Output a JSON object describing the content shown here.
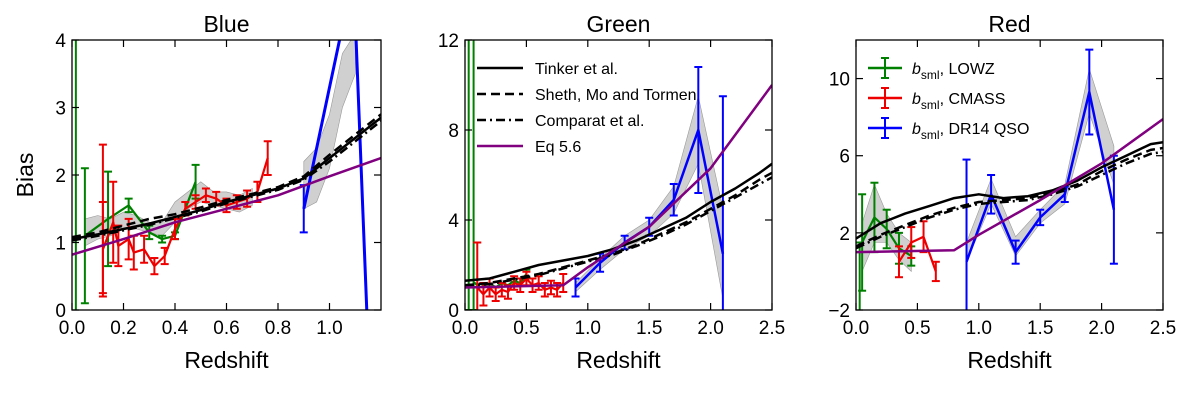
{
  "figure": {
    "ylabel_shared": "Bias"
  },
  "chart_data": [
    {
      "type": "line",
      "title": "Blue",
      "xlabel": "Redshift",
      "ylabel": "Bias",
      "xlim": [
        0.0,
        1.2
      ],
      "ylim": [
        0,
        4
      ],
      "xticks": [
        0.0,
        0.2,
        0.4,
        0.6,
        0.8,
        1.0
      ],
      "yticks": [
        0,
        1,
        2,
        3,
        4
      ],
      "xtick_labels": [
        "0.0",
        "0.2",
        "0.4",
        "0.6",
        "0.8",
        "1.0"
      ],
      "ytick_labels": [
        "0",
        "1",
        "2",
        "3",
        "4"
      ],
      "bands": [
        {
          "color": "#c8c8c8",
          "x": [
            0.05,
            0.1,
            0.15,
            0.2,
            0.25,
            0.3,
            0.35,
            0.4,
            0.45,
            0.5,
            0.55,
            0.6,
            0.65,
            0.7
          ],
          "lower": [
            0.95,
            1.05,
            1.1,
            1.2,
            1.2,
            1.15,
            1.1,
            1.3,
            1.5,
            1.6,
            1.55,
            1.5,
            1.45,
            1.55
          ],
          "upper": [
            1.35,
            1.4,
            1.35,
            1.45,
            1.4,
            1.3,
            1.3,
            1.6,
            1.75,
            1.9,
            1.75,
            1.75,
            1.7,
            1.8
          ]
        },
        {
          "color": "#c8c8c8",
          "x": [
            0.9,
            0.95,
            1.0,
            1.05,
            1.1
          ],
          "lower": [
            1.5,
            1.6,
            2.1,
            3.0,
            3.5
          ],
          "upper": [
            2.2,
            2.4,
            2.9,
            3.8,
            4.1
          ]
        }
      ],
      "series": [
        {
          "color": "#008000",
          "style": "solid",
          "width": 2.2,
          "x": [
            0.05,
            0.14,
            0.22,
            0.3,
            0.35,
            0.4,
            0.48
          ],
          "y": [
            1.1,
            1.35,
            1.55,
            1.15,
            1.05,
            1.1,
            1.9
          ],
          "errors": [
            1.0,
            0.7,
            0.1,
            0.1,
            0.05,
            0.05,
            0.25
          ],
          "extra_errorbars": [
            {
              "x": 0.015,
              "y": 2.0,
              "err": 3.0
            }
          ]
        },
        {
          "color": "#ee0000",
          "style": "solid",
          "width": 2.2,
          "x": [
            0.12,
            0.16,
            0.18,
            0.22,
            0.24,
            0.28,
            0.32,
            0.36,
            0.4,
            0.44,
            0.48,
            0.52,
            0.56,
            0.6,
            0.64,
            0.68,
            0.72,
            0.76
          ],
          "y": [
            0.9,
            1.3,
            0.95,
            1.05,
            0.85,
            0.9,
            0.65,
            0.8,
            1.2,
            1.5,
            1.6,
            1.7,
            1.65,
            1.55,
            1.6,
            1.65,
            1.75,
            2.25
          ],
          "errors": [
            0.7,
            0.6,
            0.3,
            0.3,
            0.25,
            0.2,
            0.12,
            0.12,
            0.15,
            0.1,
            0.1,
            0.1,
            0.1,
            0.1,
            0.1,
            0.12,
            0.15,
            0.25
          ],
          "extra_errorbars": [
            {
              "x": 0.12,
              "y": 1.35,
              "err": 1.1
            }
          ]
        },
        {
          "color": "#0000ff",
          "style": "solid",
          "width": 3,
          "x": [
            0.9,
            1.05,
            1.1,
            1.15
          ],
          "y": [
            1.5,
            4.2,
            4.3,
            -0.5
          ],
          "errors": [
            0.35,
            0.0,
            0.0,
            0.0
          ]
        },
        {
          "color": "#000000",
          "style": "solid",
          "width": 2.5,
          "x": [
            0.0,
            0.1,
            0.2,
            0.3,
            0.4,
            0.5,
            0.6,
            0.7,
            0.8,
            0.9,
            1.0,
            1.1,
            1.2
          ],
          "y": [
            1.05,
            1.12,
            1.2,
            1.28,
            1.38,
            1.48,
            1.6,
            1.7,
            1.8,
            1.95,
            2.25,
            2.55,
            2.85
          ],
          "errors": []
        },
        {
          "color": "#000000",
          "style": "dashed",
          "width": 2.5,
          "x": [
            0.0,
            0.1,
            0.2,
            0.3,
            0.4,
            0.5,
            0.6,
            0.7,
            0.8,
            0.9,
            1.0,
            1.1,
            1.2
          ],
          "y": [
            1.08,
            1.15,
            1.25,
            1.35,
            1.42,
            1.52,
            1.63,
            1.72,
            1.82,
            1.98,
            2.3,
            2.6,
            2.9
          ],
          "errors": []
        },
        {
          "color": "#000000",
          "style": "dashdot",
          "width": 2.5,
          "x": [
            0.0,
            0.1,
            0.2,
            0.3,
            0.4,
            0.5,
            0.6,
            0.7,
            0.8,
            0.9,
            1.0,
            1.1,
            1.2
          ],
          "y": [
            1.03,
            1.1,
            1.18,
            1.26,
            1.36,
            1.46,
            1.58,
            1.68,
            1.78,
            1.93,
            2.2,
            2.5,
            2.8
          ],
          "errors": []
        },
        {
          "color": "#800080",
          "style": "solid",
          "width": 2.5,
          "x": [
            0.0,
            0.2,
            0.4,
            0.6,
            0.8,
            1.0,
            1.2
          ],
          "y": [
            0.82,
            1.05,
            1.3,
            1.5,
            1.7,
            1.98,
            2.25
          ],
          "errors": []
        }
      ],
      "legend": null
    },
    {
      "type": "line",
      "title": "Green",
      "xlabel": "Redshift",
      "ylabel": "",
      "xlim": [
        0.0,
        2.5
      ],
      "ylim": [
        0,
        12
      ],
      "xticks": [
        0.0,
        0.5,
        1.0,
        1.5,
        2.0,
        2.5
      ],
      "yticks": [
        0,
        4,
        8,
        12
      ],
      "xtick_labels": [
        "0.0",
        "0.5",
        "1.0",
        "1.5",
        "2.0",
        "2.5"
      ],
      "ytick_labels": [
        "0",
        "4",
        "8",
        "12"
      ],
      "bands": [
        {
          "color": "#c8c8c8",
          "x": [
            0.9,
            1.1,
            1.3,
            1.5,
            1.7,
            1.9,
            2.1
          ],
          "lower": [
            0.8,
            1.8,
            2.7,
            3.3,
            4.3,
            6.5,
            0.5
          ],
          "upper": [
            1.2,
            2.3,
            3.3,
            4.0,
            5.5,
            9.5,
            4.5
          ]
        }
      ],
      "series": [
        {
          "color": "#008000",
          "style": "solid",
          "width": 2.2,
          "x": [
            0.04,
            0.08,
            0.12,
            0.16,
            0.2,
            0.25,
            0.3,
            0.35,
            0.4,
            0.45,
            0.5
          ],
          "y": [
            1.0,
            1.2,
            1.0,
            1.1,
            1.2,
            1.0,
            1.2,
            1.1,
            1.3,
            1.2,
            1.6
          ],
          "errors": [
            0,
            0,
            0,
            0,
            0,
            0,
            0,
            0,
            0,
            0,
            0.2
          ],
          "extra_errorbars": [
            {
              "x": 0.03,
              "y": 8.0,
              "err": 8.0
            },
            {
              "x": 0.07,
              "y": 8.0,
              "err": 8.0
            }
          ]
        },
        {
          "color": "#ee0000",
          "style": "solid",
          "width": 2.2,
          "x": [
            0.1,
            0.15,
            0.2,
            0.25,
            0.3,
            0.35,
            0.4,
            0.45,
            0.5,
            0.55,
            0.6,
            0.65,
            0.7,
            0.75,
            0.8
          ],
          "y": [
            1.0,
            0.7,
            1.0,
            0.7,
            0.9,
            0.8,
            1.2,
            1.1,
            1.4,
            1.1,
            1.2,
            0.9,
            1.0,
            0.9,
            1.2
          ],
          "errors": [
            2.0,
            0.5,
            0.4,
            0.3,
            0.3,
            0.3,
            0.3,
            0.3,
            0.3,
            0.3,
            0.3,
            0.3,
            0.3,
            0.3,
            0.4
          ],
          "extra_errorbars": []
        },
        {
          "color": "#0000ff",
          "style": "solid",
          "width": 2.5,
          "x": [
            0.9,
            1.1,
            1.3,
            1.5,
            1.7,
            1.9,
            2.1
          ],
          "y": [
            1.0,
            2.1,
            3.0,
            3.7,
            4.9,
            8.0,
            2.5
          ],
          "errors": [
            0.4,
            0.4,
            0.3,
            0.4,
            0.7,
            2.8,
            7.0
          ],
          "extra_errorbars": []
        },
        {
          "color": "#000000",
          "style": "solid",
          "width": 2.5,
          "x": [
            0.0,
            0.2,
            0.4,
            0.6,
            0.8,
            1.0,
            1.2,
            1.4,
            1.6,
            1.8,
            2.0,
            2.2,
            2.4,
            2.5
          ],
          "y": [
            1.3,
            1.4,
            1.7,
            2.0,
            2.2,
            2.4,
            2.7,
            3.1,
            3.6,
            4.1,
            4.8,
            5.4,
            6.1,
            6.5
          ],
          "errors": []
        },
        {
          "color": "#000000",
          "style": "dashed",
          "width": 2.5,
          "x": [
            0.0,
            0.2,
            0.4,
            0.6,
            0.8,
            1.0,
            1.2,
            1.4,
            1.6,
            1.8,
            2.0,
            2.2,
            2.4,
            2.5
          ],
          "y": [
            1.1,
            1.2,
            1.4,
            1.6,
            1.9,
            2.2,
            2.5,
            2.9,
            3.4,
            3.9,
            4.5,
            5.1,
            5.8,
            6.1
          ],
          "errors": []
        },
        {
          "color": "#000000",
          "style": "dashdot",
          "width": 2.5,
          "x": [
            0.0,
            0.2,
            0.4,
            0.6,
            0.8,
            1.0,
            1.2,
            1.4,
            1.6,
            1.8,
            2.0,
            2.2,
            2.4,
            2.5
          ],
          "y": [
            1.1,
            1.15,
            1.35,
            1.55,
            1.85,
            2.15,
            2.45,
            2.85,
            3.3,
            3.8,
            4.4,
            5.0,
            5.6,
            5.9
          ],
          "errors": []
        },
        {
          "color": "#800080",
          "style": "solid",
          "width": 2.5,
          "x": [
            0.0,
            0.8,
            1.0,
            1.5,
            2.0,
            2.5
          ],
          "y": [
            1.0,
            1.1,
            1.9,
            3.7,
            6.3,
            10.0
          ],
          "errors": []
        }
      ],
      "legend": {
        "placement": "upper-left",
        "entries": [
          {
            "label": "Tinker et al.",
            "color": "#000000",
            "style": "solid"
          },
          {
            "label": "Sheth, Mo and Tormen",
            "color": "#000000",
            "style": "dashed"
          },
          {
            "label": "Comparat et al.",
            "color": "#000000",
            "style": "dashdot"
          },
          {
            "label": "Eq 5.6",
            "color": "#800080",
            "style": "solid"
          }
        ]
      }
    },
    {
      "type": "line",
      "title": "Red",
      "xlabel": "Redshift",
      "ylabel": "",
      "xlim": [
        0.0,
        2.5
      ],
      "ylim": [
        -2,
        12
      ],
      "xticks": [
        0.0,
        0.5,
        1.0,
        1.5,
        2.0,
        2.5
      ],
      "yticks": [
        -2,
        2,
        6,
        10
      ],
      "xtick_labels": [
        "0.0",
        "0.5",
        "1.0",
        "1.5",
        "2.0",
        "2.5"
      ],
      "ytick_labels": [
        "−2",
        "2",
        "6",
        "10"
      ],
      "bands": [
        {
          "color": "#c8c8c8",
          "x": [
            0.05,
            0.15,
            0.25,
            0.35,
            0.45
          ],
          "lower": [
            0.0,
            1.5,
            1.5,
            0.6,
            0.0
          ],
          "upper": [
            2.5,
            4.5,
            3.0,
            2.0,
            1.5
          ]
        },
        {
          "color": "#c8c8c8",
          "x": [
            0.9,
            1.1,
            1.3,
            1.5,
            1.7,
            1.9,
            2.1
          ],
          "lower": [
            0.5,
            3.5,
            0.8,
            2.5,
            3.5,
            8.2,
            4.5
          ],
          "upper": [
            1.5,
            4.8,
            1.8,
            3.2,
            4.5,
            10.5,
            6.5
          ]
        }
      ],
      "series": [
        {
          "color": "#008000",
          "style": "solid",
          "width": 2.2,
          "x": [
            0.05,
            0.15,
            0.25,
            0.35,
            0.45
          ],
          "y": [
            1.5,
            2.8,
            2.2,
            1.2,
            0.8
          ],
          "errors": [
            2.5,
            1.8,
            1.0,
            0.8,
            0.5
          ],
          "extra_errorbars": [
            {
              "x": 0.03,
              "y": -0.5,
              "err": 2.0
            }
          ]
        },
        {
          "color": "#ee0000",
          "style": "solid",
          "width": 2.2,
          "x": [
            0.35,
            0.45,
            0.55,
            0.65
          ],
          "y": [
            0.5,
            1.5,
            1.8,
            0.0
          ],
          "errors": [
            0.8,
            0.8,
            0.8,
            0.5
          ],
          "extra_errorbars": []
        },
        {
          "color": "#0000ff",
          "style": "solid",
          "width": 2.5,
          "x": [
            0.9,
            1.1,
            1.3,
            1.5,
            1.7,
            1.9,
            2.1
          ],
          "y": [
            0.5,
            4.0,
            1.0,
            2.8,
            4.0,
            9.3,
            3.2
          ],
          "errors": [
            5.3,
            1.0,
            0.6,
            0.4,
            0.4,
            2.2,
            2.8
          ],
          "extra_errorbars": []
        },
        {
          "color": "#000000",
          "style": "solid",
          "width": 2.5,
          "x": [
            0.0,
            0.2,
            0.4,
            0.6,
            0.8,
            1.0,
            1.2,
            1.4,
            1.6,
            1.8,
            2.0,
            2.2,
            2.4,
            2.5
          ],
          "y": [
            1.7,
            2.5,
            3.0,
            3.4,
            3.8,
            4.0,
            3.8,
            3.9,
            4.2,
            4.7,
            5.4,
            6.0,
            6.6,
            6.7
          ],
          "errors": []
        },
        {
          "color": "#000000",
          "style": "dashed",
          "width": 2.5,
          "x": [
            0.0,
            0.2,
            0.4,
            0.6,
            0.8,
            1.0,
            1.2,
            1.4,
            1.6,
            1.8,
            2.0,
            2.2,
            2.4,
            2.5
          ],
          "y": [
            1.3,
            1.9,
            2.4,
            2.9,
            3.3,
            3.6,
            3.7,
            3.8,
            4.1,
            4.5,
            5.2,
            5.8,
            6.3,
            6.4
          ],
          "errors": []
        },
        {
          "color": "#000000",
          "style": "dashdot",
          "width": 2.5,
          "x": [
            0.0,
            0.2,
            0.4,
            0.6,
            0.8,
            1.0,
            1.2,
            1.4,
            1.6,
            1.8,
            2.0,
            2.2,
            2.4,
            2.5
          ],
          "y": [
            1.2,
            1.8,
            2.3,
            2.8,
            3.2,
            3.5,
            3.6,
            3.7,
            4.0,
            4.4,
            5.0,
            5.6,
            6.1,
            6.2
          ],
          "errors": []
        },
        {
          "color": "#800080",
          "style": "solid",
          "width": 2.5,
          "x": [
            0.0,
            0.8,
            1.0,
            1.5,
            2.0,
            2.5
          ],
          "y": [
            1.0,
            1.1,
            1.9,
            3.7,
            5.6,
            7.9
          ],
          "errors": []
        }
      ],
      "legend": {
        "placement": "upper-left",
        "entries": [
          {
            "label_main": "b",
            "label_sub": "sml",
            "label_rest": ", LOWZ",
            "color": "#008000",
            "style": "errorbar"
          },
          {
            "label_main": "b",
            "label_sub": "sml",
            "label_rest": ", CMASS",
            "color": "#ee0000",
            "style": "errorbar"
          },
          {
            "label_main": "b",
            "label_sub": "sml",
            "label_rest": ", DR14 QSO",
            "color": "#0000ff",
            "style": "errorbar"
          }
        ]
      }
    }
  ]
}
